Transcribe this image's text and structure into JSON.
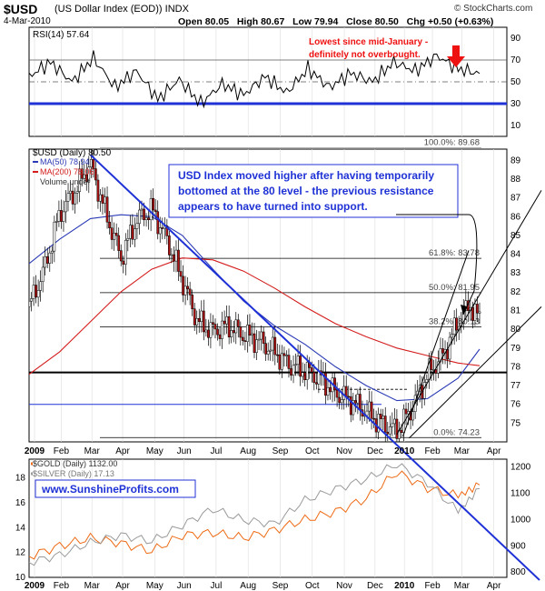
{
  "header": {
    "symbol": "$USD",
    "name": "(US Dollar Index (EOD)) INDX",
    "date": "4-Mar-2010",
    "open_label": "Open",
    "open": "80.05",
    "high_label": "High",
    "high": "80.67",
    "low_label": "Low",
    "low": "79.94",
    "close_label": "Close",
    "close": "80.50",
    "chg_label": "Chg",
    "chg": "+0.50 (+0.63%)",
    "brand": "© StockCharts.com"
  },
  "colors": {
    "annotation_red": "#ee1111",
    "trend_blue": "#1f32d6",
    "ma50": "#2b3bb5",
    "ma200": "#d41c1c",
    "gold": "#ee6a14",
    "silver": "#9a9a9a",
    "candle_up": "#ffffff",
    "candle_down": "#b01414"
  },
  "rsi": {
    "label": "RSI(14) 57.64",
    "y_range": [
      0,
      100
    ],
    "ticks": [
      "90",
      "70",
      "50",
      "30",
      "10"
    ],
    "levels": [
      70,
      50,
      30
    ],
    "annotation": [
      "Lowest since mid-January -",
      "definitely not overbought."
    ]
  },
  "price": {
    "legend": [
      "$USD (Daily) 80.50",
      "MA(50) 78.94",
      "MA(200) 78.06",
      "Volume undef"
    ],
    "y_range": [
      74,
      89.6
    ],
    "ticks": [
      "89",
      "88",
      "87",
      "86",
      "85",
      "84",
      "83",
      "82",
      "81",
      "80",
      "79",
      "78",
      "77",
      "76",
      "75"
    ],
    "annotation": [
      "USD Index moved higher after having temporarily",
      "bottomed at the 80 level - the previous resistance",
      "appears to have turned into support."
    ],
    "fibs": [
      {
        "label": "100.0%: 89.68",
        "value": 89.68
      },
      {
        "label": "61.8%: 83.78",
        "value": 83.78
      },
      {
        "label": "50.0%: 81.95",
        "value": 81.95
      },
      {
        "label": "38.2%: 80.13",
        "value": 80.13
      },
      {
        "label": "0.0%: 74.23",
        "value": 74.23
      }
    ]
  },
  "xaxis": {
    "labels": [
      "2009",
      "Feb",
      "Mar",
      "Apr",
      "May",
      "Jun",
      "Jul",
      "Aug",
      "Sep",
      "Oct",
      "Nov",
      "Dec",
      "2010",
      "Feb",
      "Mar",
      "Apr"
    ]
  },
  "metals": {
    "legend_gold": "$GOLD (Daily) 1132.00",
    "legend_silver": "$SILVER (Daily) 17.13",
    "left_ticks": [
      "18",
      "16",
      "14",
      "12",
      "10"
    ],
    "right_ticks": [
      "1200",
      "1100",
      "1000",
      "900",
      "800"
    ],
    "watermark": "www.SunshineProfits.com"
  },
  "chart_data": [
    {
      "type": "line",
      "title": "RSI(14)",
      "series_name": "RSI(14)",
      "ylim": [
        0,
        100
      ],
      "x": [
        0,
        14,
        28,
        42,
        56,
        70,
        84,
        98,
        112,
        126,
        140,
        154,
        168,
        182,
        196,
        210,
        224,
        238,
        252,
        266,
        280,
        294
      ],
      "values": [
        55,
        68,
        50,
        72,
        45,
        60,
        34,
        52,
        30,
        48,
        38,
        55,
        40,
        62,
        45,
        58,
        50,
        68,
        60,
        74,
        62,
        57.6
      ]
    },
    {
      "type": "line",
      "title": "$USD (Daily)",
      "series": [
        {
          "name": "$USD (Daily) 80.50",
          "x": [
            0,
            10,
            20,
            30,
            40,
            50,
            60,
            70,
            80,
            90,
            100,
            110,
            120,
            130,
            140,
            150,
            160,
            170,
            180,
            190,
            200,
            210,
            220,
            230,
            240,
            250,
            260,
            270,
            280,
            288,
            294
          ],
          "values": [
            81.2,
            83.2,
            86.2,
            87.4,
            88.8,
            86.2,
            83.8,
            85.8,
            86.4,
            84.8,
            82.6,
            80.4,
            79.9,
            80.2,
            79.7,
            79.4,
            78.8,
            78.1,
            77.8,
            77.4,
            76.6,
            76.2,
            75.6,
            75.0,
            74.6,
            75.8,
            77.6,
            78.6,
            80.4,
            81.3,
            80.5
          ]
        },
        {
          "name": "MA(50) 78.94",
          "x": [
            0,
            20,
            40,
            60,
            80,
            100,
            120,
            140,
            160,
            180,
            200,
            220,
            240,
            260,
            280,
            294
          ],
          "values": [
            83.5,
            84.8,
            85.9,
            86.1,
            86.0,
            85.0,
            83.2,
            81.5,
            80.2,
            79.2,
            78.0,
            77.0,
            76.2,
            76.3,
            77.4,
            78.94
          ]
        },
        {
          "name": "MA(200) 78.06",
          "x": [
            0,
            20,
            40,
            60,
            80,
            100,
            120,
            140,
            160,
            180,
            200,
            220,
            240,
            260,
            280,
            294
          ],
          "values": [
            77.6,
            78.8,
            80.4,
            82.0,
            83.2,
            83.8,
            83.7,
            83.1,
            82.2,
            81.2,
            80.3,
            79.6,
            79.0,
            78.6,
            78.2,
            78.06
          ]
        }
      ]
    },
    {
      "type": "line",
      "title": "$GOLD / $SILVER (Daily)",
      "series": [
        {
          "name": "$GOLD (Daily) 1132.00",
          "axis": "right",
          "x": [
            0,
            20,
            40,
            60,
            80,
            100,
            120,
            140,
            160,
            180,
            200,
            220,
            240,
            260,
            280,
            294
          ],
          "values": [
            860,
            900,
            930,
            910,
            880,
            940,
            950,
            930,
            960,
            1000,
            1030,
            1080,
            1180,
            1120,
            1090,
            1132
          ]
        },
        {
          "name": "$SILVER (Daily) 17.13",
          "axis": "left",
          "x": [
            0,
            20,
            40,
            60,
            80,
            100,
            120,
            140,
            160,
            180,
            200,
            220,
            240,
            260,
            280,
            294
          ],
          "values": [
            11.2,
            11.8,
            12.8,
            13.4,
            12.9,
            14.2,
            15.5,
            14.6,
            14.3,
            16.2,
            17.1,
            17.9,
            19.1,
            17.6,
            15.3,
            17.13
          ]
        }
      ],
      "ylim_left": [
        10,
        19.5
      ],
      "ylim_right": [
        780,
        1230
      ]
    }
  ]
}
